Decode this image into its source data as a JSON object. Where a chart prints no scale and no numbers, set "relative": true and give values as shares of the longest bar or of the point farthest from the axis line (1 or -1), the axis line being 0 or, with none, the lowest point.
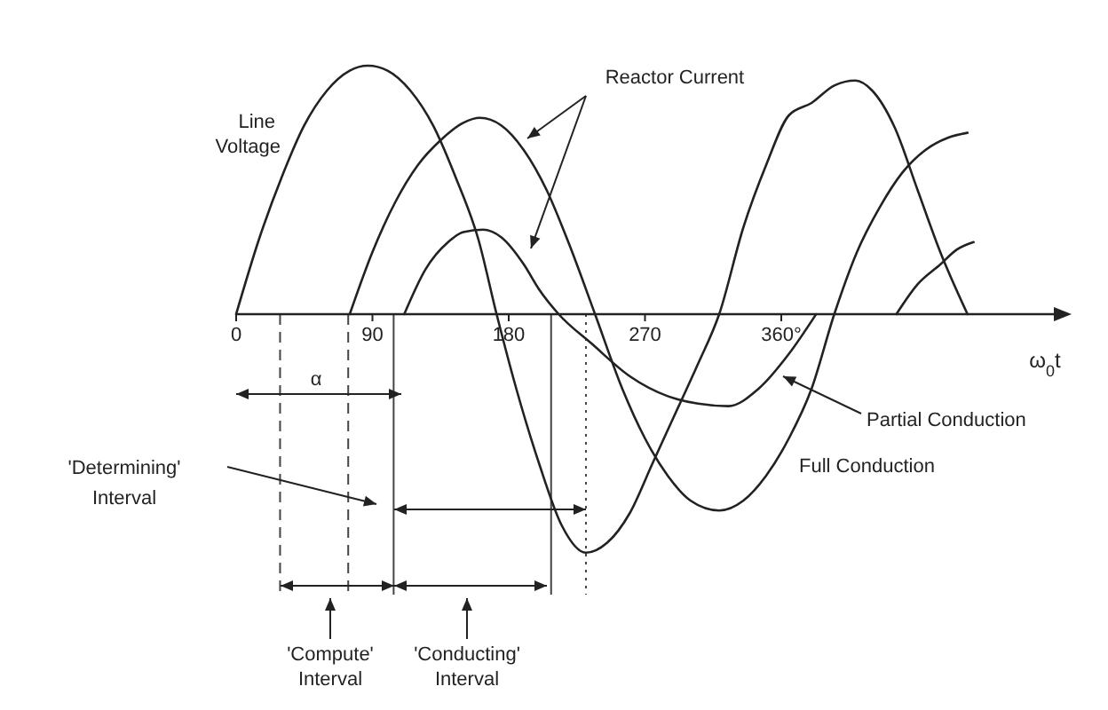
{
  "chart_data": {
    "type": "line",
    "relative": true,
    "xlabel": "ω$_{0}$t",
    "xlim": [
      0,
      540
    ],
    "xticks": [
      0,
      90,
      180,
      270,
      {
        "value": 360,
        "label": "360°"
      }
    ],
    "marker": "none",
    "line_style": "solid",
    "series": [
      {
        "name": "Line Voltage",
        "color": "#222222",
        "x": [
          0,
          15,
          30,
          45,
          60,
          75,
          87,
          100,
          115,
          130,
          145,
          160,
          172,
          185,
          200,
          215,
          231,
          245,
          260,
          275,
          290,
          305,
          319,
          335,
          350,
          365,
          380,
          395,
          409,
          420,
          435,
          450,
          465,
          483
        ],
        "values": [
          0,
          0.3,
          0.55,
          0.76,
          0.9,
          0.98,
          1,
          0.98,
          0.9,
          0.76,
          0.55,
          0.3,
          0,
          -0.3,
          -0.6,
          -0.85,
          -0.96,
          -0.92,
          -0.8,
          -0.6,
          -0.4,
          -0.2,
          0,
          0.35,
          0.6,
          0.8,
          0.85,
          0.92,
          0.94,
          0.9,
          0.75,
          0.5,
          0.25,
          0
        ]
      },
      {
        "name": "Full Conduction",
        "color": "#222222",
        "x": [
          75,
          90,
          105,
          120,
          135,
          150,
          161,
          175,
          190,
          205,
          220,
          237,
          255,
          270,
          285,
          300,
          319,
          335,
          350,
          365,
          380,
          395,
          410,
          425,
          440,
          455,
          470,
          483
        ],
        "values": [
          0,
          0.25,
          0.45,
          0.6,
          0.7,
          0.77,
          0.79,
          0.76,
          0.66,
          0.5,
          0.28,
          0,
          -0.3,
          -0.5,
          -0.65,
          -0.75,
          -0.79,
          -0.75,
          -0.65,
          -0.5,
          -0.3,
          0,
          0.25,
          0.43,
          0.57,
          0.66,
          0.71,
          0.73
        ]
      },
      {
        "name": "Partial Conduction",
        "color": "#222222",
        "x": [
          111,
          125,
          140,
          150,
          163,
          175,
          190,
          200,
          213,
          235,
          260,
          285,
          305,
          325,
          345,
          365,
          383,
          410,
          436,
          450,
          465,
          476,
          487
        ],
        "values": [
          0,
          0.18,
          0.29,
          0.33,
          0.34,
          0.31,
          0.2,
          0.1,
          0,
          -0.12,
          -0.25,
          -0.33,
          -0.36,
          -0.37,
          -0.3,
          -0.16,
          0,
          null,
          0,
          0.12,
          0.2,
          0.26,
          0.29
        ]
      }
    ],
    "ref_lines": [
      {
        "axis": "x",
        "value": 29,
        "line_style": "dashed"
      },
      {
        "axis": "x",
        "value": 74,
        "line_style": "dashed"
      },
      {
        "axis": "x",
        "value": 104,
        "line_style": "solid"
      },
      {
        "axis": "x",
        "value": 208,
        "line_style": "solid"
      },
      {
        "axis": "x",
        "value": 231,
        "line_style": "dotted"
      }
    ],
    "annotations": [
      "Reactor Current",
      "α",
      "'Determining' Interval",
      "'Compute' Interval",
      "'Conducting' Interval"
    ]
  }
}
